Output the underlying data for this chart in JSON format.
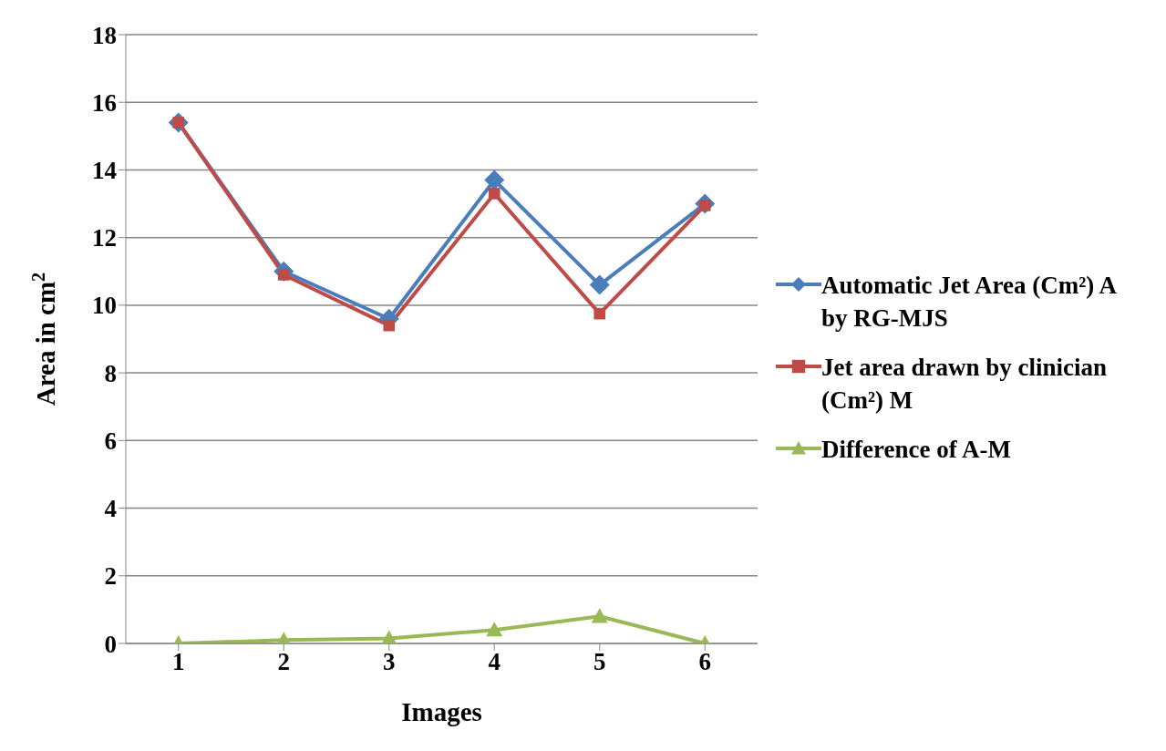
{
  "chart_data": {
    "type": "line",
    "xlabel": "Images",
    "ylabel": "Area in cm$^{2}$",
    "categories": [
      "1",
      "2",
      "3",
      "4",
      "5",
      "6"
    ],
    "series": [
      {
        "name": "Automatic Jet Area (Cm²) A by RG-MJS",
        "color": "#4a7ebb",
        "marker": "diamond",
        "values": [
          15.4,
          11.0,
          9.6,
          13.7,
          10.6,
          13.0
        ]
      },
      {
        "name": "Jet area drawn by clinician (Cm²) M",
        "color": "#be4b48",
        "marker": "square",
        "values": [
          15.4,
          10.9,
          9.4,
          13.3,
          9.75,
          12.95
        ]
      },
      {
        "name": "Difference of  A-M",
        "color": "#98b954",
        "marker": "triangle",
        "values": [
          0.0,
          0.1,
          0.15,
          0.4,
          0.8,
          0.0
        ]
      }
    ],
    "ylim": [
      0,
      18
    ],
    "yticks": [
      0,
      2,
      4,
      6,
      8,
      10,
      12,
      14,
      16,
      18
    ],
    "grid": "y",
    "legend": "right"
  }
}
